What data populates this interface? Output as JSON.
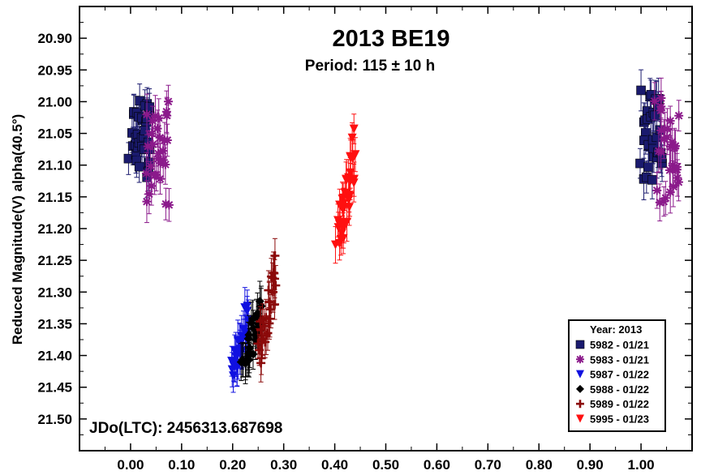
{
  "chart_data": {
    "type": "scatter",
    "title": "2013 BE19",
    "subtitle": "Period: 115 ± 10 h",
    "xlabel": "",
    "ylabel": "Reduced Magnitude(V) alpha(40.5°)",
    "annotation": "JDo(LTC): 2456313.687698",
    "xlim": [
      -0.1,
      1.1
    ],
    "ylim": [
      21.55,
      20.85
    ],
    "y_inverted": true,
    "x_ticks": [
      0.0,
      0.1,
      0.2,
      0.3,
      0.4,
      0.5,
      0.6,
      0.7,
      0.8,
      0.9,
      1.0
    ],
    "x_tick_labels": [
      "0.00",
      "0.10",
      "0.20",
      "0.30",
      "0.40",
      "0.50",
      "0.60",
      "0.70",
      "0.80",
      "0.90",
      "1.00"
    ],
    "y_ticks": [
      20.9,
      20.95,
      21.0,
      21.05,
      21.1,
      21.15,
      21.2,
      21.25,
      21.3,
      21.35,
      21.4,
      21.45,
      21.5
    ],
    "y_tick_labels": [
      "20.90",
      "20.95",
      "21.00",
      "21.05",
      "21.10",
      "21.15",
      "21.20",
      "21.25",
      "21.30",
      "21.35",
      "21.40",
      "21.45",
      "21.50"
    ],
    "grid": false,
    "legend": {
      "title": "Year: 2013",
      "placement": "bottom-right"
    },
    "series": [
      {
        "name": "5982 - 01/21",
        "marker": "square",
        "color": "#1a1a6e",
        "x_range": [
          0.0,
          0.04
        ],
        "y_range": [
          21.0,
          21.11
        ]
      },
      {
        "name": "5983 - 01/21",
        "marker": "star",
        "color": "#8b1a8b",
        "x_range": [
          0.03,
          0.075
        ],
        "y_range": [
          21.02,
          21.15
        ]
      },
      {
        "name": "5987 - 01/22",
        "marker": "triangle-down",
        "color": "#1010e0",
        "x_range": [
          0.2,
          0.23
        ],
        "y_range": [
          21.33,
          21.43
        ]
      },
      {
        "name": "5988 - 01/22",
        "marker": "diamond",
        "color": "#000000",
        "x_range": [
          0.22,
          0.26
        ],
        "y_range": [
          21.32,
          21.42
        ]
      },
      {
        "name": "5989 - 01/22",
        "marker": "cross",
        "color": "#8b0a0a",
        "x_range": [
          0.25,
          0.285
        ],
        "y_range": [
          21.27,
          21.4
        ]
      },
      {
        "name": "5995 - 01/23",
        "marker": "triangle-down",
        "color": "#ff1010",
        "x_range": [
          0.405,
          0.44
        ],
        "y_range": [
          21.08,
          21.23
        ]
      }
    ]
  }
}
